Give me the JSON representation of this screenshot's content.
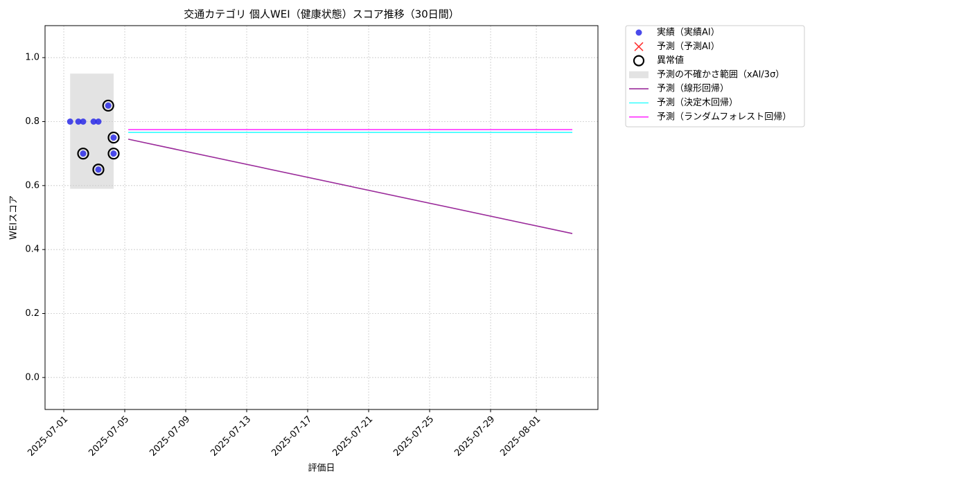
{
  "chart_data": {
    "type": "scatter",
    "title": "交通カテゴリ 個人WEI（健康状態）スコア推移（30日間）",
    "xlabel": "評価日",
    "ylabel": "WEIスコア",
    "xlim": [
      "2025-06-29T18:30",
      "2025-08-05T01:00"
    ],
    "xticks": [
      "2025-07-01",
      "2025-07-05",
      "2025-07-09",
      "2025-07-13",
      "2025-07-17",
      "2025-07-21",
      "2025-07-25",
      "2025-07-29",
      "2025-08-01"
    ],
    "ylim": [
      -0.1,
      1.1
    ],
    "yticks": [
      {
        "value": 0,
        "label": "0.0"
      },
      0.2,
      0.4,
      0.6,
      0.8,
      {
        "value": 1,
        "label": "1.0"
      }
    ],
    "grid": true,
    "legend": "outside upper right",
    "series": [
      {
        "name": "実績（実績AI）",
        "kind": "points",
        "color": "#2a2ae8",
        "x": [
          "2025-07-01T10:00",
          "2025-07-01T23:00",
          "2025-07-02T06:30",
          "2025-07-02T06:30",
          "2025-07-02T23:00",
          "2025-07-03T06:30",
          "2025-07-03T06:30",
          "2025-07-03T22:00",
          "2025-07-04T06:30",
          "2025-07-04T06:30"
        ],
        "values": [
          0.8,
          0.8,
          0.8,
          0.7,
          0.8,
          0.8,
          0.65,
          0.85,
          0.75,
          0.7
        ]
      },
      {
        "name": "予測（予測AI）",
        "kind": "cross",
        "color": "#ff3333",
        "x": [],
        "values": []
      },
      {
        "name": "異常値",
        "kind": "ring",
        "color": "#000000",
        "x": [
          "2025-07-02T06:30",
          "2025-07-03T06:30",
          "2025-07-03T22:00",
          "2025-07-04T06:30",
          "2025-07-04T06:30"
        ],
        "values": [
          0.7,
          0.65,
          0.85,
          0.75,
          0.7
        ]
      },
      {
        "name": "予測の不確かさ範囲（xAI/3σ）",
        "kind": "band",
        "color": "#cccccc",
        "x": [
          "2025-07-01T10:00",
          "2025-07-04T06:30"
        ],
        "lower": [
          0.59,
          0.59
        ],
        "upper": [
          0.95,
          0.95
        ]
      },
      {
        "name": "予測（線形回帰）",
        "kind": "line",
        "color": "#9a2a9a",
        "x": [
          "2025-07-05T05:30",
          "2025-08-03T08:40"
        ],
        "values": [
          0.745,
          0.45
        ]
      },
      {
        "name": "予測（決定木回帰）",
        "kind": "line",
        "color": "#33ffff",
        "x": [
          "2025-07-05T05:30",
          "2025-08-03T08:40"
        ],
        "values": [
          0.766,
          0.766
        ]
      },
      {
        "name": "予測（ランダムフォレスト回帰）",
        "kind": "line",
        "color": "#ff33ff",
        "x": [
          "2025-07-05T05:30",
          "2025-08-03T08:40"
        ],
        "values": [
          0.775,
          0.775
        ]
      }
    ]
  }
}
